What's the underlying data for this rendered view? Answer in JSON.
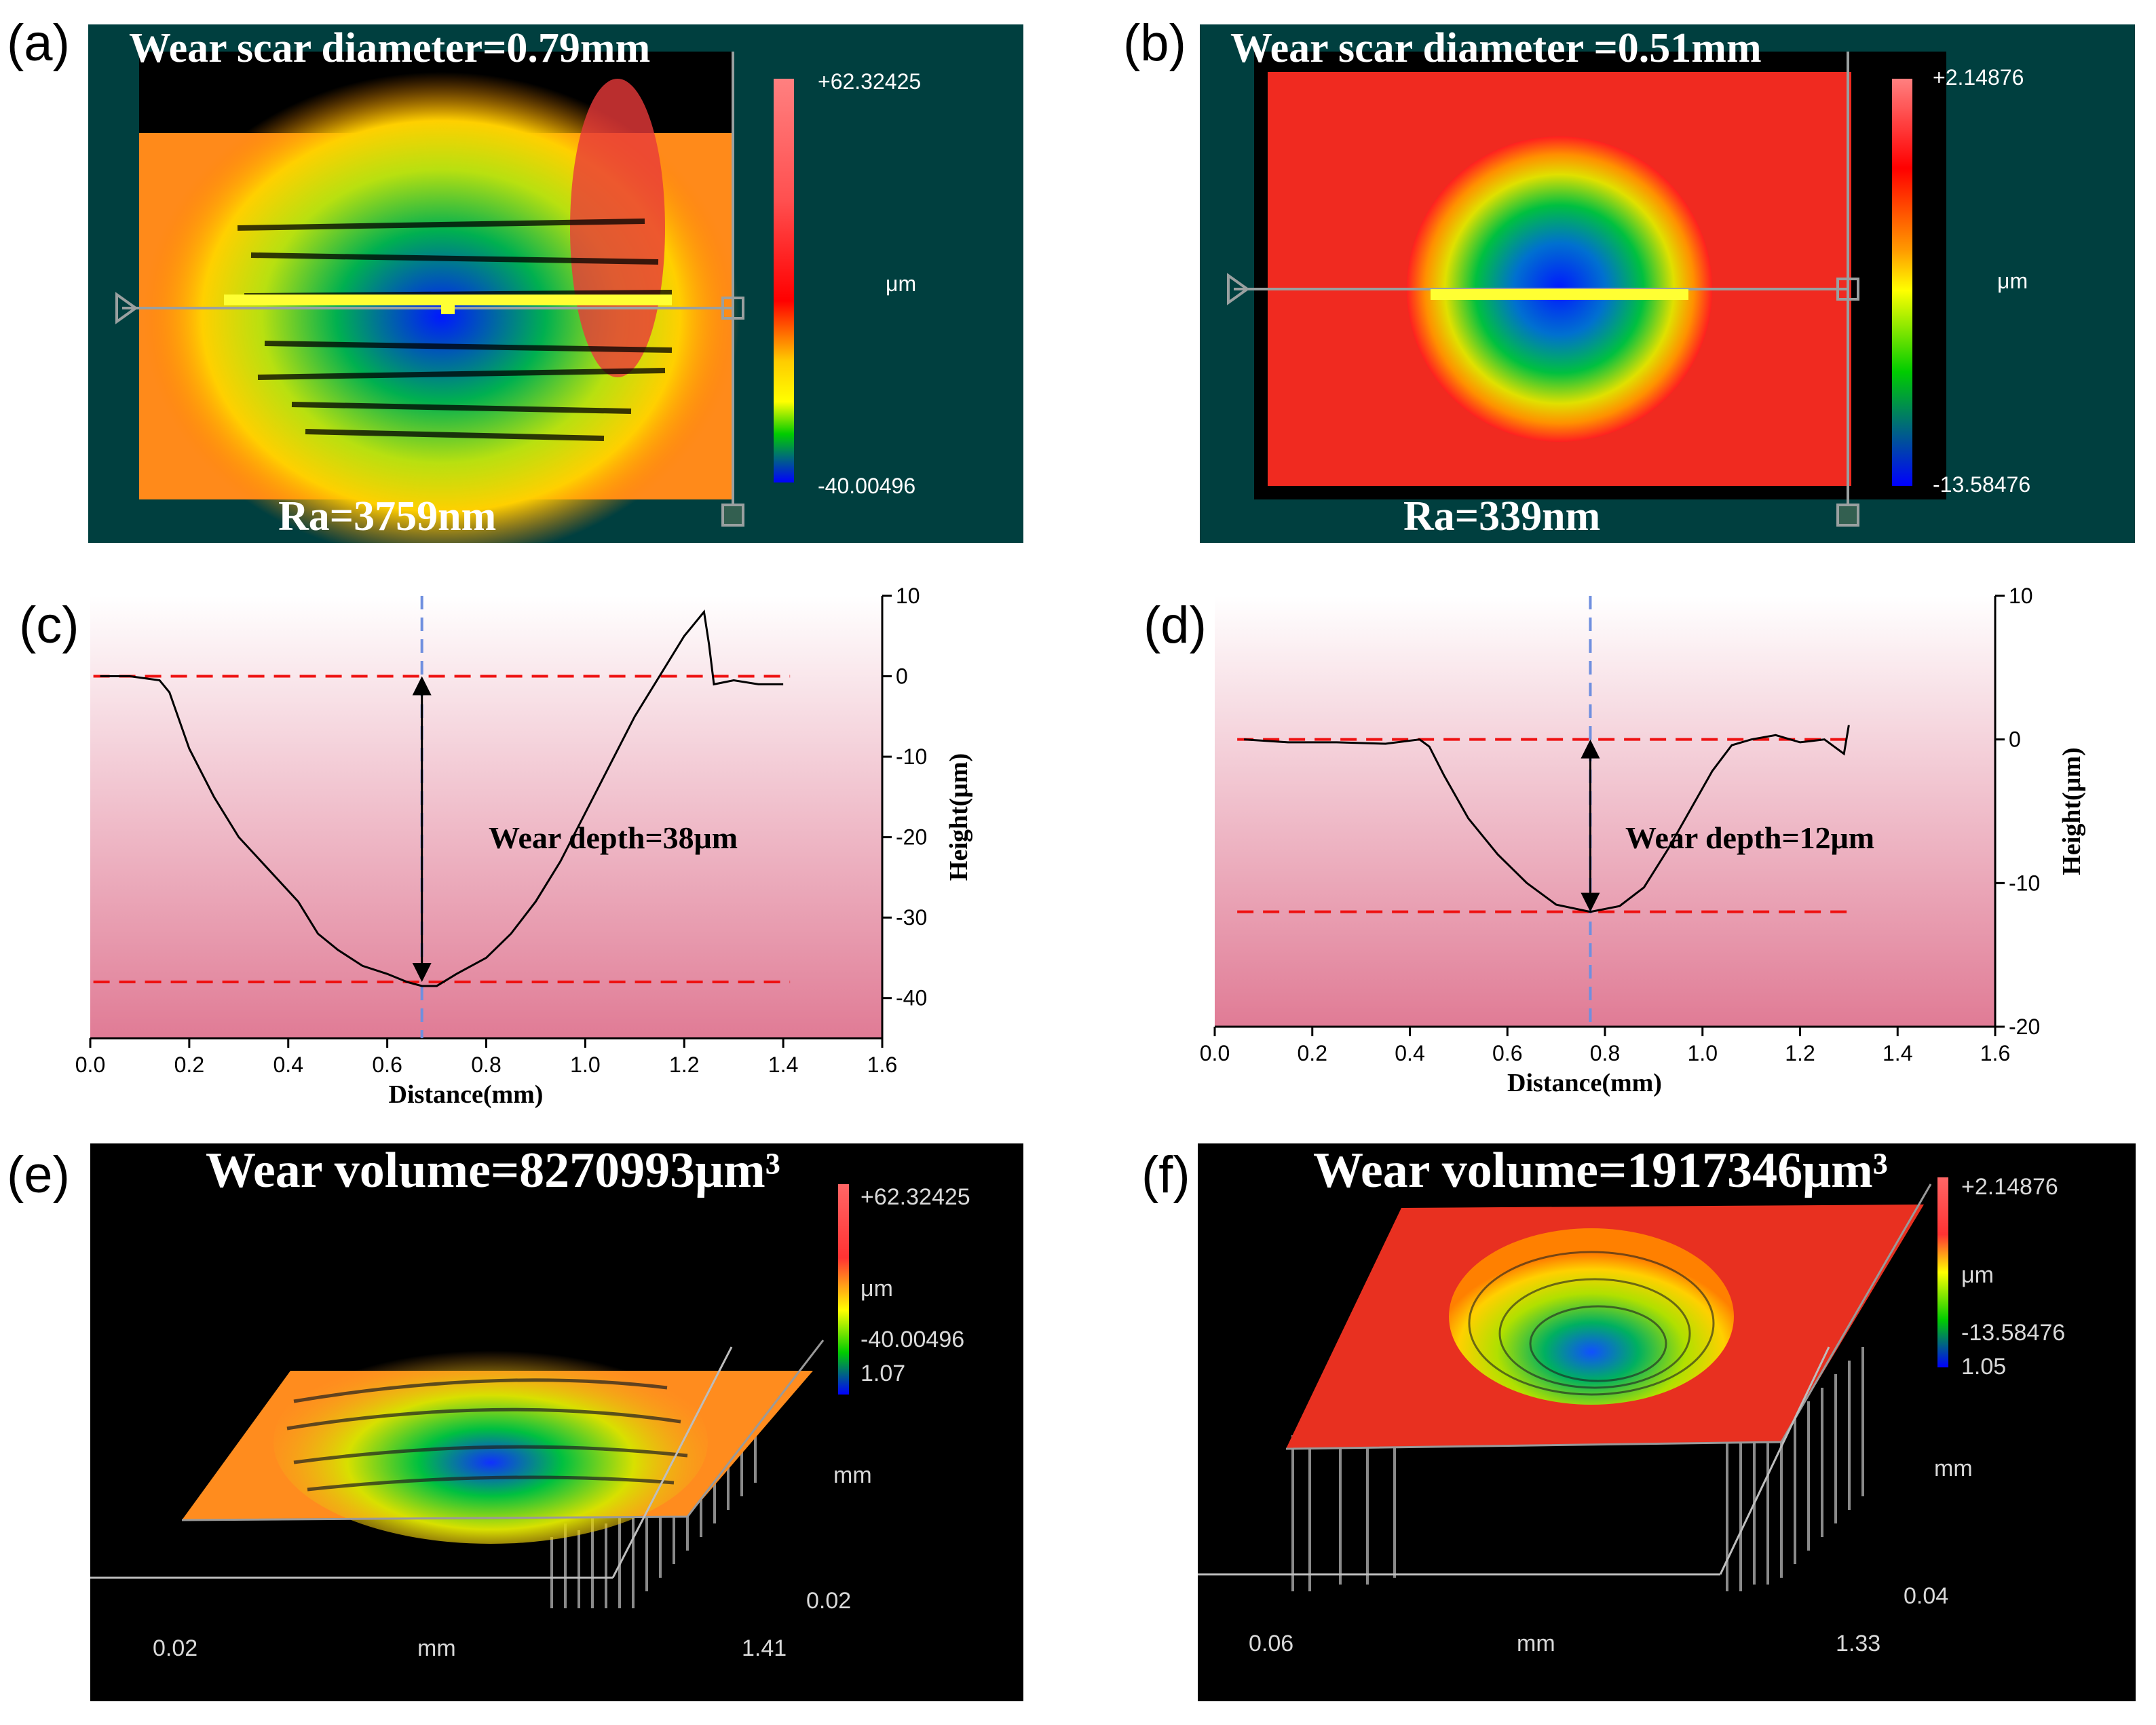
{
  "panels": {
    "a": {
      "letter": "(a)",
      "title": "Wear scar diameter=0.79mm",
      "ra": "Ra=3759nm",
      "scale_max": "+62.32425",
      "scale_unit": "μm",
      "scale_min": "-40.00496"
    },
    "b": {
      "letter": "(b)",
      "title": "Wear scar diameter =0.51mm",
      "ra": "Ra=339nm",
      "scale_max": "+2.14876",
      "scale_unit": "μm",
      "scale_min": "-13.58476"
    },
    "c": {
      "letter": "(c)"
    },
    "d": {
      "letter": "(d)"
    },
    "e": {
      "letter": "(e)",
      "title": "Wear volume=8270993μm³",
      "scale_max": "+62.32425",
      "scale_unit": "μm",
      "scale_min": "-40.00496",
      "y_top": "1.07",
      "y_unit": "mm",
      "y_bottom": "0.02",
      "x_left": "0.02",
      "x_unit": "mm",
      "x_right": "1.41"
    },
    "f": {
      "letter": "(f)",
      "title": "Wear volume=1917346μm³",
      "scale_max": "+2.14876",
      "scale_unit": "μm",
      "scale_min": "-13.58476",
      "y_top": "1.05",
      "y_unit": "mm",
      "y_bottom": "0.04",
      "x_left": "0.06",
      "x_unit": "mm",
      "x_right": "1.33"
    }
  },
  "colors": {
    "map_background": "#003f3f",
    "profile_gradient_top": "#ffffff",
    "profile_gradient_bottom": "#e07b95",
    "reference_line": "#ee1111",
    "center_line": "#6f8fdf",
    "profile_line": "#000000"
  },
  "chart_data": [
    {
      "id": "c",
      "type": "line",
      "title": "",
      "xlabel": "Distance(mm)",
      "ylabel": "Height(μm)",
      "xlim": [
        0.0,
        1.6
      ],
      "ylim": [
        -45,
        10
      ],
      "xticks": [
        "0.0",
        "0.2",
        "0.4",
        "0.6",
        "0.8",
        "1.0",
        "1.2",
        "1.4",
        "1.6"
      ],
      "yticks": [
        "10",
        "0",
        "-10",
        "-20",
        "-30",
        "-40"
      ],
      "annotation": "Wear depth=38μm",
      "reference_lines": [
        0,
        -38
      ],
      "center_x": 0.67,
      "series": [
        {
          "name": "profile",
          "x": [
            0.02,
            0.08,
            0.14,
            0.16,
            0.2,
            0.25,
            0.3,
            0.36,
            0.42,
            0.45,
            0.46,
            0.5,
            0.55,
            0.6,
            0.64,
            0.67,
            0.7,
            0.74,
            0.8,
            0.85,
            0.9,
            0.95,
            1.0,
            1.05,
            1.1,
            1.15,
            1.2,
            1.24,
            1.25,
            1.26,
            1.3,
            1.35,
            1.4
          ],
          "y": [
            0,
            0,
            -0.5,
            -2,
            -9,
            -15,
            -20,
            -24,
            -28,
            -31,
            -32,
            -34,
            -36,
            -37,
            -38,
            -38.5,
            -38.5,
            -37,
            -35,
            -32,
            -28,
            -23,
            -17,
            -11,
            -5,
            0,
            5,
            8,
            4,
            -1,
            -0.5,
            -1,
            -1
          ]
        }
      ]
    },
    {
      "id": "d",
      "type": "line",
      "title": "",
      "xlabel": "Distance(mm)",
      "ylabel": "Height(μm)",
      "xlim": [
        0.0,
        1.6
      ],
      "ylim": [
        -20,
        10
      ],
      "xticks": [
        "0.0",
        "0.2",
        "0.4",
        "0.6",
        "0.8",
        "1.0",
        "1.2",
        "1.4",
        "1.6"
      ],
      "yticks": [
        "10",
        "0",
        "-10",
        "-20"
      ],
      "annotation": "Wear depth=12μm",
      "reference_lines": [
        0,
        -12
      ],
      "center_x": 0.77,
      "series": [
        {
          "name": "profile",
          "x": [
            0.06,
            0.15,
            0.25,
            0.35,
            0.42,
            0.44,
            0.47,
            0.52,
            0.58,
            0.64,
            0.7,
            0.77,
            0.83,
            0.88,
            0.93,
            0.98,
            1.02,
            1.06,
            1.1,
            1.15,
            1.2,
            1.25,
            1.29,
            1.3
          ],
          "y": [
            0,
            -0.2,
            -0.2,
            -0.3,
            0,
            -0.5,
            -2.5,
            -5.5,
            -8,
            -10,
            -11.5,
            -12,
            -11.6,
            -10.3,
            -7.6,
            -4.6,
            -2.2,
            -0.4,
            0,
            0.3,
            -0.2,
            0,
            -1,
            1
          ]
        }
      ]
    }
  ]
}
